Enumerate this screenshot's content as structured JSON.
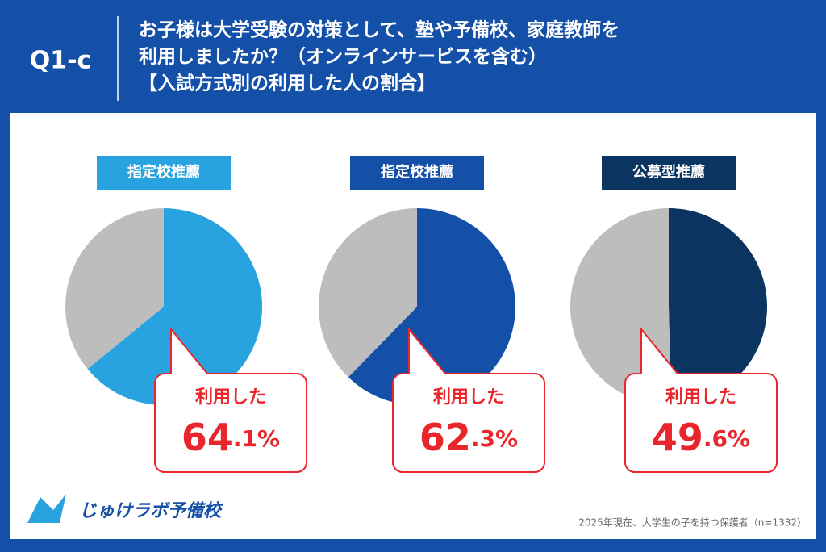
{
  "header": {
    "label": "Q1-c",
    "title_lines": [
      "お子様は大学受験の対策として、塾や予備校、家庭教師を",
      "利用しましたか？（オンラインサービスを含む）",
      "【入試方式別の利用した人の割合】"
    ]
  },
  "chart_data": [
    {
      "type": "pie",
      "title": "指定校推薦",
      "title_color": "#29a3e0",
      "categories": [
        "利用した",
        null
      ],
      "values": [
        64.1,
        35.9
      ],
      "value_labels": [
        "64.1%",
        null
      ],
      "colors": [
        "#29a3e0",
        "#bdbdbd"
      ]
    },
    {
      "type": "pie",
      "title": "指定校推薦",
      "title_color": "#1550a8",
      "categories": [
        "利用した",
        null
      ],
      "values": [
        62.3,
        37.7
      ],
      "value_labels": [
        "62.3%",
        null
      ],
      "colors": [
        "#1550a8",
        "#bdbdbd"
      ]
    },
    {
      "type": "pie",
      "title": "公募型推薦",
      "title_color": "#0b3560",
      "categories": [
        "利用した",
        null
      ],
      "values": [
        49.6,
        50.4
      ],
      "value_labels": [
        "49.6%",
        null
      ],
      "colors": [
        "#0b3560",
        "#bdbdbd"
      ]
    }
  ],
  "footer": {
    "logo": "じゅけラボ予備校",
    "note": "2025年現在、大学生の子を持つ保護者（n=1332）"
  }
}
